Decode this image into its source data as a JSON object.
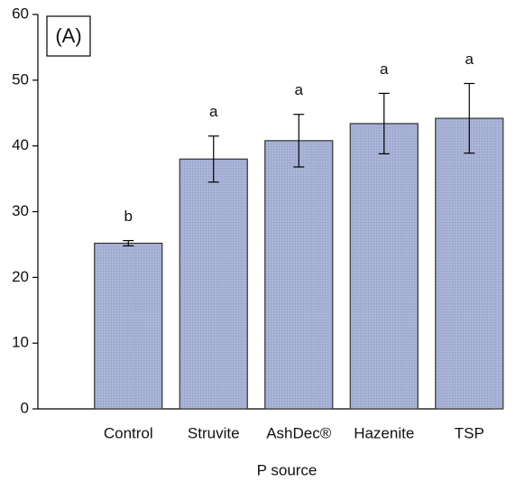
{
  "chart_data": {
    "type": "bar",
    "panel_label": "(A)",
    "xlabel": "P source",
    "categories": [
      "Control",
      "Struvite",
      "AshDec®",
      "Hazenite",
      "TSP"
    ],
    "values": [
      25.2,
      38.0,
      40.8,
      43.4,
      44.2
    ],
    "errors": [
      0.4,
      3.5,
      4.0,
      4.6,
      5.3
    ],
    "letters": [
      "b",
      "a",
      "a",
      "a",
      "a"
    ],
    "color": "#a9b3d6",
    "ylim": [
      0,
      60
    ],
    "yticks": [
      0,
      10,
      20,
      30,
      40,
      50,
      60
    ]
  }
}
